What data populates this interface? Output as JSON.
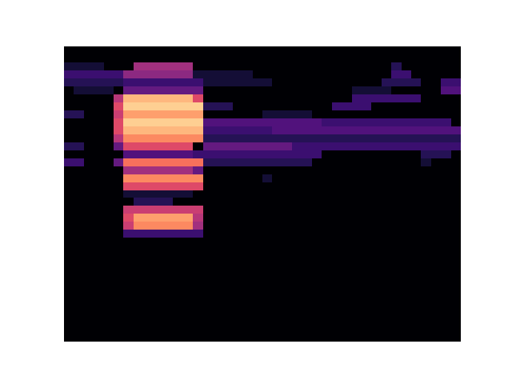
{
  "chart_data": {
    "type": "heatmap",
    "tick_labels": false,
    "xlim": [
      0,
      40
    ],
    "ylim": [
      0,
      37
    ],
    "zlim": [
      0,
      1
    ],
    "z": [
      [
        0,
        0,
        0,
        0,
        0,
        0,
        0,
        0,
        0,
        0,
        0,
        0,
        0,
        0,
        0,
        0,
        0,
        0,
        0,
        0,
        0,
        0,
        0,
        0,
        0,
        0,
        0,
        0,
        0,
        0,
        0,
        0,
        0,
        0,
        0,
        0,
        0,
        0,
        0,
        0
      ],
      [
        0,
        0,
        0,
        0,
        0,
        0,
        0,
        0,
        0,
        0,
        0,
        0,
        0,
        0,
        0,
        0,
        0,
        0,
        0,
        0,
        0,
        0,
        0,
        0,
        0,
        0,
        0,
        0,
        0,
        0,
        0,
        0,
        0,
        0,
        0,
        0,
        0,
        0,
        0,
        0
      ],
      [
        0.1,
        0.1,
        0.1,
        0.1,
        0,
        0,
        0,
        0.45,
        0.45,
        0.45,
        0.45,
        0.45,
        0.45,
        0,
        0,
        0,
        0,
        0,
        0,
        0,
        0,
        0,
        0,
        0,
        0,
        0,
        0,
        0,
        0,
        0,
        0,
        0,
        0,
        0.15,
        0,
        0,
        0,
        0,
        0,
        0
      ],
      [
        0.2,
        0.2,
        0.2,
        0.2,
        0.2,
        0.2,
        0.4,
        0.4,
        0.4,
        0.4,
        0.4,
        0.4,
        0.4,
        0.1,
        0.1,
        0.1,
        0.1,
        0.1,
        0.1,
        0,
        0,
        0,
        0,
        0,
        0,
        0,
        0,
        0,
        0,
        0,
        0,
        0,
        0,
        0.2,
        0.2,
        0,
        0,
        0,
        0,
        0
      ],
      [
        0.15,
        0.15,
        0.15,
        0.15,
        0.15,
        0.15,
        0.2,
        0.2,
        0.2,
        0.2,
        0.2,
        0.2,
        0.2,
        0.2,
        0.1,
        0.1,
        0.1,
        0.1,
        0.1,
        0.1,
        0.1,
        0,
        0,
        0,
        0,
        0,
        0,
        0,
        0,
        0,
        0,
        0,
        0.15,
        0.15,
        0.15,
        0.15,
        0,
        0,
        0.2,
        0.2
      ],
      [
        0,
        0.1,
        0.1,
        0.1,
        0.1,
        0,
        0.3,
        0.3,
        0.3,
        0.3,
        0.3,
        0.3,
        0.3,
        0.3,
        0,
        0,
        0,
        0,
        0,
        0,
        0,
        0,
        0,
        0,
        0,
        0,
        0,
        0,
        0,
        0.1,
        0.1,
        0.1,
        0.1,
        0,
        0,
        0,
        0,
        0,
        0.25,
        0.25
      ],
      [
        0,
        0,
        0,
        0,
        0,
        0.5,
        0.85,
        0.85,
        0.85,
        0.85,
        0.85,
        0.85,
        0.85,
        0.6,
        0,
        0,
        0,
        0,
        0,
        0,
        0,
        0,
        0,
        0,
        0,
        0,
        0,
        0,
        0,
        0.2,
        0.2,
        0.2,
        0.2,
        0.2,
        0.2,
        0.2,
        0,
        0,
        0,
        0
      ],
      [
        0,
        0,
        0,
        0,
        0,
        0.6,
        0.9,
        0.9,
        0.9,
        0.9,
        0.9,
        0.9,
        0.9,
        0.9,
        0.15,
        0.15,
        0.15,
        0,
        0,
        0,
        0,
        0,
        0,
        0,
        0,
        0,
        0,
        0.2,
        0.2,
        0.2,
        0.2,
        0,
        0,
        0,
        0,
        0,
        0,
        0,
        0,
        0
      ],
      [
        0.15,
        0.15,
        0,
        0,
        0,
        0.55,
        0.8,
        0.8,
        0.8,
        0.8,
        0.8,
        0.8,
        0.8,
        0.8,
        0,
        0,
        0,
        0,
        0,
        0,
        0.1,
        0.1,
        0.1,
        0.1,
        0.1,
        0,
        0,
        0,
        0,
        0,
        0,
        0,
        0,
        0,
        0,
        0,
        0,
        0,
        0,
        0
      ],
      [
        0,
        0,
        0,
        0,
        0,
        0.6,
        0.9,
        0.9,
        0.9,
        0.9,
        0.9,
        0.9,
        0.9,
        0.9,
        0.25,
        0.25,
        0.25,
        0.25,
        0.25,
        0.25,
        0.25,
        0.25,
        0.25,
        0.25,
        0.25,
        0.25,
        0.2,
        0.2,
        0.2,
        0.2,
        0.2,
        0.2,
        0.2,
        0.2,
        0.2,
        0.2,
        0.2,
        0.2,
        0.2,
        0
      ],
      [
        0,
        0,
        0,
        0,
        0,
        0.6,
        0.85,
        0.85,
        0.85,
        0.85,
        0.85,
        0.85,
        0.85,
        0.85,
        0.2,
        0.2,
        0.2,
        0.2,
        0.2,
        0.2,
        0.2,
        0.25,
        0.25,
        0.25,
        0.25,
        0.25,
        0.25,
        0.25,
        0.25,
        0.25,
        0.25,
        0.25,
        0.25,
        0.25,
        0.25,
        0.25,
        0.25,
        0.25,
        0.25,
        0.25
      ],
      [
        0,
        0,
        0,
        0,
        0,
        0.5,
        0.75,
        0.75,
        0.75,
        0.75,
        0.75,
        0.75,
        0.75,
        0.75,
        0.15,
        0.15,
        0.15,
        0.15,
        0.15,
        0.15,
        0.15,
        0.15,
        0.15,
        0.15,
        0.15,
        0.15,
        0.15,
        0.15,
        0.15,
        0.15,
        0.15,
        0.15,
        0.15,
        0.15,
        0.15,
        0.15,
        0.15,
        0.15,
        0.15,
        0.15
      ],
      [
        0.15,
        0.15,
        0,
        0,
        0,
        0.3,
        0.6,
        0.6,
        0.6,
        0.6,
        0.6,
        0.6,
        0.6,
        0,
        0.3,
        0.3,
        0.3,
        0.3,
        0.3,
        0.3,
        0.3,
        0.3,
        0.3,
        0.2,
        0.2,
        0.2,
        0.2,
        0.2,
        0.2,
        0.2,
        0.2,
        0.2,
        0.2,
        0.2,
        0.2,
        0.2,
        0.2,
        0.2,
        0.2,
        0.2
      ],
      [
        0,
        0,
        0,
        0,
        0,
        0,
        0.25,
        0.25,
        0.25,
        0.25,
        0.25,
        0.25,
        0.25,
        0.2,
        0.2,
        0.2,
        0.2,
        0.2,
        0.2,
        0.2,
        0.2,
        0.2,
        0.2,
        0.2,
        0.2,
        0.2,
        0,
        0,
        0,
        0,
        0,
        0,
        0,
        0,
        0,
        0,
        0.15,
        0.15,
        0.15,
        0
      ],
      [
        0.2,
        0.2,
        0,
        0,
        0,
        0.3,
        0.7,
        0.7,
        0.7,
        0.7,
        0.7,
        0.7,
        0.7,
        0.7,
        0.15,
        0.15,
        0.15,
        0.15,
        0.15,
        0.15,
        0.15,
        0.15,
        0.15,
        0.15,
        0.15,
        0,
        0,
        0,
        0,
        0,
        0,
        0,
        0,
        0,
        0,
        0,
        0.1,
        0,
        0,
        0
      ],
      [
        0,
        0,
        0,
        0,
        0,
        0,
        0.45,
        0.45,
        0.45,
        0.45,
        0.45,
        0.45,
        0.45,
        0.3,
        0,
        0,
        0,
        0,
        0,
        0,
        0,
        0,
        0,
        0,
        0,
        0,
        0,
        0,
        0,
        0,
        0,
        0,
        0,
        0,
        0,
        0,
        0,
        0,
        0,
        0
      ],
      [
        0,
        0,
        0,
        0,
        0,
        0,
        0.75,
        0.75,
        0.75,
        0.75,
        0.75,
        0.75,
        0.75,
        0.75,
        0,
        0,
        0,
        0,
        0,
        0,
        0.1,
        0,
        0,
        0,
        0,
        0,
        0,
        0,
        0,
        0,
        0,
        0,
        0,
        0,
        0,
        0,
        0,
        0,
        0,
        0
      ],
      [
        0,
        0,
        0,
        0,
        0,
        0,
        0.6,
        0.6,
        0.6,
        0.6,
        0.6,
        0.6,
        0.6,
        0.6,
        0,
        0,
        0,
        0,
        0,
        0,
        0,
        0,
        0,
        0,
        0,
        0,
        0,
        0,
        0,
        0,
        0,
        0,
        0,
        0,
        0,
        0,
        0,
        0,
        0,
        0
      ],
      [
        0,
        0,
        0,
        0,
        0,
        0,
        0.1,
        0.1,
        0.1,
        0.1,
        0.1,
        0.1,
        0.1,
        0,
        0,
        0,
        0,
        0,
        0,
        0,
        0,
        0,
        0,
        0,
        0,
        0,
        0,
        0,
        0,
        0,
        0,
        0,
        0,
        0,
        0,
        0,
        0,
        0,
        0,
        0
      ],
      [
        0,
        0,
        0,
        0,
        0,
        0,
        0,
        0.15,
        0.15,
        0.15,
        0.15,
        0,
        0,
        0,
        0,
        0,
        0,
        0,
        0,
        0,
        0,
        0,
        0,
        0,
        0,
        0,
        0,
        0,
        0,
        0,
        0,
        0,
        0,
        0,
        0,
        0,
        0,
        0,
        0,
        0
      ],
      [
        0,
        0,
        0,
        0,
        0,
        0,
        0.55,
        0.55,
        0.55,
        0.55,
        0.55,
        0.55,
        0.55,
        0.55,
        0,
        0,
        0,
        0,
        0,
        0,
        0,
        0,
        0,
        0,
        0,
        0,
        0,
        0,
        0,
        0,
        0,
        0,
        0,
        0,
        0,
        0,
        0,
        0,
        0,
        0
      ],
      [
        0,
        0,
        0,
        0,
        0,
        0,
        0.6,
        0.8,
        0.8,
        0.8,
        0.8,
        0.8,
        0.8,
        0.5,
        0,
        0,
        0,
        0,
        0,
        0,
        0,
        0,
        0,
        0,
        0,
        0,
        0,
        0,
        0,
        0,
        0,
        0,
        0,
        0,
        0,
        0,
        0,
        0,
        0,
        0
      ],
      [
        0,
        0,
        0,
        0,
        0,
        0,
        0.55,
        0.75,
        0.75,
        0.75,
        0.75,
        0.75,
        0.75,
        0.45,
        0,
        0,
        0,
        0,
        0,
        0,
        0,
        0,
        0,
        0,
        0,
        0,
        0,
        0,
        0,
        0,
        0,
        0,
        0,
        0,
        0,
        0,
        0,
        0,
        0,
        0
      ],
      [
        0,
        0,
        0,
        0,
        0,
        0,
        0.2,
        0.2,
        0.2,
        0.2,
        0.2,
        0.2,
        0.2,
        0.2,
        0,
        0,
        0,
        0,
        0,
        0,
        0,
        0,
        0,
        0,
        0,
        0,
        0,
        0,
        0,
        0,
        0,
        0,
        0,
        0,
        0,
        0,
        0,
        0,
        0,
        0
      ],
      [
        0,
        0,
        0,
        0,
        0,
        0,
        0,
        0,
        0,
        0,
        0,
        0,
        0,
        0,
        0,
        0,
        0,
        0,
        0,
        0,
        0,
        0,
        0,
        0,
        0,
        0,
        0,
        0,
        0,
        0,
        0,
        0,
        0,
        0,
        0,
        0,
        0,
        0,
        0,
        0
      ],
      [
        0,
        0,
        0,
        0,
        0,
        0,
        0,
        0,
        0,
        0,
        0,
        0,
        0,
        0,
        0,
        0,
        0,
        0,
        0,
        0,
        0,
        0,
        0,
        0,
        0,
        0,
        0,
        0,
        0,
        0,
        0,
        0,
        0,
        0,
        0,
        0,
        0,
        0,
        0,
        0
      ],
      [
        0,
        0,
        0,
        0,
        0,
        0,
        0,
        0,
        0,
        0,
        0,
        0,
        0,
        0,
        0,
        0,
        0,
        0,
        0,
        0,
        0,
        0,
        0,
        0,
        0,
        0,
        0,
        0,
        0,
        0,
        0,
        0,
        0,
        0,
        0,
        0,
        0,
        0,
        0,
        0
      ],
      [
        0,
        0,
        0,
        0,
        0,
        0,
        0,
        0,
        0,
        0,
        0,
        0,
        0,
        0,
        0,
        0,
        0,
        0,
        0,
        0,
        0,
        0,
        0,
        0,
        0,
        0,
        0,
        0,
        0,
        0,
        0,
        0,
        0,
        0,
        0,
        0,
        0,
        0,
        0,
        0
      ],
      [
        0,
        0,
        0,
        0,
        0,
        0,
        0,
        0,
        0,
        0,
        0,
        0,
        0,
        0,
        0,
        0,
        0,
        0,
        0,
        0,
        0,
        0,
        0,
        0,
        0,
        0,
        0,
        0,
        0,
        0,
        0,
        0,
        0,
        0,
        0,
        0,
        0,
        0,
        0,
        0
      ],
      [
        0,
        0,
        0,
        0,
        0,
        0,
        0,
        0,
        0,
        0,
        0,
        0,
        0,
        0,
        0,
        0,
        0,
        0,
        0,
        0,
        0,
        0,
        0,
        0,
        0,
        0,
        0,
        0,
        0,
        0,
        0,
        0,
        0,
        0,
        0,
        0,
        0,
        0,
        0,
        0
      ],
      [
        0,
        0,
        0,
        0,
        0,
        0,
        0,
        0,
        0,
        0,
        0,
        0,
        0,
        0,
        0,
        0,
        0,
        0,
        0,
        0,
        0,
        0,
        0,
        0,
        0,
        0,
        0,
        0,
        0,
        0,
        0,
        0,
        0,
        0,
        0,
        0,
        0,
        0,
        0,
        0
      ],
      [
        0,
        0,
        0,
        0,
        0,
        0,
        0,
        0,
        0,
        0,
        0,
        0,
        0,
        0,
        0,
        0,
        0,
        0,
        0,
        0,
        0,
        0,
        0,
        0,
        0,
        0,
        0,
        0,
        0,
        0,
        0,
        0,
        0,
        0,
        0,
        0,
        0,
        0,
        0,
        0
      ],
      [
        0,
        0,
        0,
        0,
        0,
        0,
        0,
        0,
        0,
        0,
        0,
        0,
        0,
        0,
        0,
        0,
        0,
        0,
        0,
        0,
        0,
        0,
        0,
        0,
        0,
        0,
        0,
        0,
        0,
        0,
        0,
        0,
        0,
        0,
        0,
        0,
        0,
        0,
        0,
        0
      ],
      [
        0,
        0,
        0,
        0,
        0,
        0,
        0,
        0,
        0,
        0,
        0,
        0,
        0,
        0,
        0,
        0,
        0,
        0,
        0,
        0,
        0,
        0,
        0,
        0,
        0,
        0,
        0,
        0,
        0,
        0,
        0,
        0,
        0,
        0,
        0,
        0,
        0,
        0,
        0,
        0
      ],
      [
        0,
        0,
        0,
        0,
        0,
        0,
        0,
        0,
        0,
        0,
        0,
        0,
        0,
        0,
        0,
        0,
        0,
        0,
        0,
        0,
        0,
        0,
        0,
        0,
        0,
        0,
        0,
        0,
        0,
        0,
        0,
        0,
        0,
        0,
        0,
        0,
        0,
        0,
        0,
        0
      ],
      [
        0,
        0,
        0,
        0,
        0,
        0,
        0,
        0,
        0,
        0,
        0,
        0,
        0,
        0,
        0,
        0,
        0,
        0,
        0,
        0,
        0,
        0,
        0,
        0,
        0,
        0,
        0,
        0,
        0,
        0,
        0,
        0,
        0,
        0,
        0,
        0,
        0,
        0,
        0,
        0
      ],
      [
        0,
        0,
        0,
        0,
        0,
        0,
        0,
        0,
        0,
        0,
        0,
        0,
        0,
        0,
        0,
        0,
        0,
        0,
        0,
        0,
        0,
        0,
        0,
        0,
        0,
        0,
        0,
        0,
        0,
        0,
        0,
        0,
        0,
        0,
        0,
        0,
        0,
        0,
        0,
        0
      ]
    ]
  }
}
